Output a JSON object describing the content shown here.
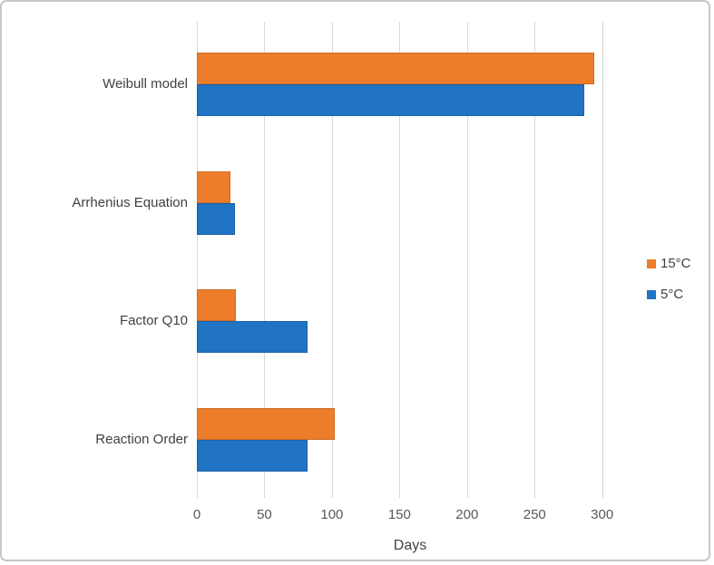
{
  "chart_data": {
    "type": "bar",
    "orientation": "horizontal",
    "title": "",
    "xlabel": "Days",
    "categories": [
      "Weibull model",
      "Arrhenius Equation",
      "Factor Q10",
      "Reaction Order"
    ],
    "series": [
      {
        "name": "15°C",
        "color": "#ee7d2b",
        "values": [
          294,
          25,
          29,
          102
        ]
      },
      {
        "name": "5°C",
        "color": "#2173c4",
        "values": [
          287,
          28,
          82,
          82
        ]
      }
    ],
    "xlim": [
      0,
      300
    ],
    "xticks": [
      0,
      50,
      100,
      150,
      200,
      250,
      300
    ],
    "grid": "vertical-only",
    "legend_position": "right"
  },
  "colors": {
    "gridline": "#d9d9d9",
    "tick_label": "#595959",
    "category_label": "#404040",
    "axis_label": "#444444",
    "frame_border": "#c7c7c7",
    "background": "#ffffff"
  }
}
